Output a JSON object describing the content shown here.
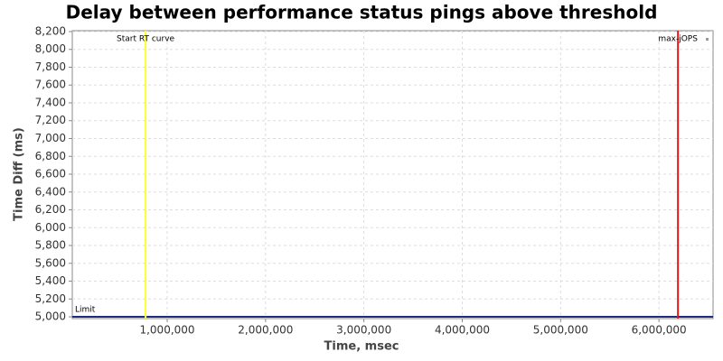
{
  "chart_data": {
    "type": "line",
    "title": "Delay between performance status pings above threshold",
    "xlabel": "Time, msec",
    "ylabel": "Time Diff (ms)",
    "xlim": [
      35000,
      6550000
    ],
    "ylim": [
      4980,
      8210
    ],
    "grid": true,
    "xticks": [
      {
        "value": 1000000,
        "label": "1,000,000"
      },
      {
        "value": 2000000,
        "label": "2,000,000"
      },
      {
        "value": 3000000,
        "label": "3,000,000"
      },
      {
        "value": 4000000,
        "label": "4,000,000"
      },
      {
        "value": 5000000,
        "label": "5,000,000"
      },
      {
        "value": 6000000,
        "label": "6,000,000"
      }
    ],
    "yticks": [
      {
        "value": 5000,
        "label": "5,000"
      },
      {
        "value": 5200,
        "label": "5,200"
      },
      {
        "value": 5400,
        "label": "5,400"
      },
      {
        "value": 5600,
        "label": "5,600"
      },
      {
        "value": 5800,
        "label": "5,800"
      },
      {
        "value": 6000,
        "label": "6,000"
      },
      {
        "value": 6200,
        "label": "6,200"
      },
      {
        "value": 6400,
        "label": "6,400"
      },
      {
        "value": 6600,
        "label": "6,600"
      },
      {
        "value": 6800,
        "label": "6,800"
      },
      {
        "value": 7000,
        "label": "7,000"
      },
      {
        "value": 7200,
        "label": "7,200"
      },
      {
        "value": 7400,
        "label": "7,400"
      },
      {
        "value": 7600,
        "label": "7,600"
      },
      {
        "value": 7800,
        "label": "7,800"
      },
      {
        "value": 8000,
        "label": "8,000"
      },
      {
        "value": 8200,
        "label": "8,200"
      }
    ],
    "vlines": [
      {
        "label": "Start RT curve",
        "value": 780000,
        "color": "#ffff33"
      },
      {
        "label": "max-jOPS",
        "value": 6193000,
        "color": "#e31a1c"
      }
    ],
    "hlines": [
      {
        "label": "Limit",
        "value": 5000,
        "color": "#1f2a80"
      }
    ]
  }
}
